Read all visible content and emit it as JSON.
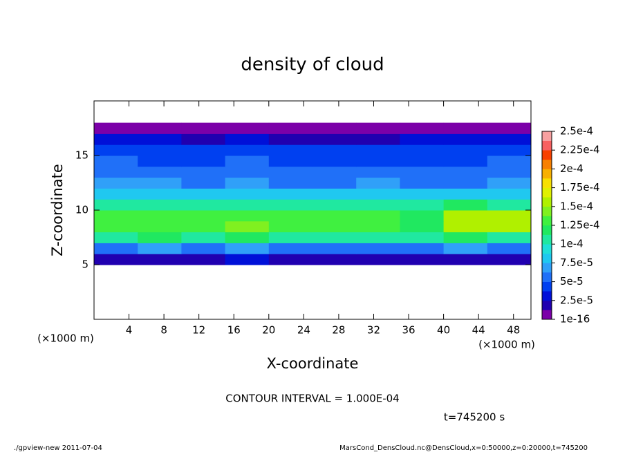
{
  "chart_data": {
    "type": "heatmap",
    "title": "density of cloud",
    "xlabel": "X-coordinate",
    "ylabel": "Z-coordinate",
    "x_unit": "(×1000 m)",
    "y_unit": "(×1000 m)",
    "annotation": "CONTOUR INTERVAL = 1.000E-04",
    "time_label": "t=745200 s",
    "footer_left": "./gpview-new  2011-07-04",
    "footer_right": "MarsCond_DensCloud.nc@DensCloud,x=0:50000,z=0:20000,t=745200",
    "xlim": [
      0,
      50
    ],
    "ylim": [
      0,
      20
    ],
    "xticks": [
      4,
      8,
      12,
      16,
      20,
      24,
      28,
      32,
      36,
      40,
      44,
      48
    ],
    "yticks": [
      5,
      10,
      15
    ],
    "x": [
      2.5,
      7.5,
      12.5,
      17.5,
      22.5,
      27.5,
      32.5,
      37.5,
      42.5,
      47.5
    ],
    "y": [
      0.5,
      1.5,
      2.5,
      3.5,
      4.5,
      5.5,
      6.5,
      7.5,
      8.5,
      9.5,
      10.5,
      11.5,
      12.5,
      13.5,
      14.5,
      15.5,
      16.5,
      17.5,
      18.5,
      19.5
    ],
    "values": [
      [
        null,
        null,
        null,
        null,
        null,
        null,
        null,
        null,
        null,
        null
      ],
      [
        null,
        null,
        null,
        null,
        null,
        null,
        null,
        null,
        null,
        null
      ],
      [
        null,
        null,
        null,
        null,
        null,
        null,
        null,
        null,
        null,
        null
      ],
      [
        null,
        null,
        null,
        null,
        null,
        null,
        null,
        null,
        null,
        null
      ],
      [
        null,
        null,
        null,
        null,
        null,
        null,
        null,
        null,
        null,
        null
      ],
      [
        2e-05,
        2e-05,
        2e-05,
        2.5e-05,
        2e-05,
        2e-05,
        2e-05,
        1.5e-05,
        2e-05,
        2e-05
      ],
      [
        6e-05,
        6.5e-05,
        6e-05,
        6.5e-05,
        6e-05,
        5.5e-05,
        6e-05,
        6e-05,
        6.5e-05,
        6e-05
      ],
      [
        0.00011,
        0.000115,
        0.00011,
        0.00012,
        0.00011,
        0.000105,
        0.00011,
        0.000105,
        0.000115,
        0.00011
      ],
      [
        0.00013,
        0.000135,
        0.000135,
        0.00014,
        0.00013,
        0.000125,
        0.000125,
        0.00012,
        0.00015,
        0.00015
      ],
      [
        0.00013,
        0.00013,
        0.000135,
        0.000135,
        0.00013,
        0.00013,
        0.000125,
        0.00012,
        0.000155,
        0.00016
      ],
      [
        0.00011,
        0.000105,
        0.00011,
        0.00011,
        0.000105,
        0.00011,
        0.00011,
        0.000105,
        0.000115,
        0.00011
      ],
      [
        8e-05,
        7.5e-05,
        8e-05,
        8e-05,
        7.5e-05,
        8e-05,
        8.5e-05,
        8e-05,
        8e-05,
        7.5e-05
      ],
      [
        6.5e-05,
        6.5e-05,
        6e-05,
        6.5e-05,
        6e-05,
        6e-05,
        6.5e-05,
        6e-05,
        6e-05,
        6.5e-05
      ],
      [
        5.5e-05,
        5.5e-05,
        5e-05,
        5.5e-05,
        5e-05,
        5e-05,
        5.5e-05,
        5e-05,
        5e-05,
        5.5e-05
      ],
      [
        5e-05,
        4.5e-05,
        4.5e-05,
        5e-05,
        4.5e-05,
        4.5e-05,
        4.5e-05,
        4.5e-05,
        4.5e-05,
        5e-05
      ],
      [
        4.5e-05,
        4e-05,
        4e-05,
        4e-05,
        4e-05,
        4e-05,
        4e-05,
        4e-05,
        4e-05,
        4.5e-05
      ],
      [
        2.5e-05,
        2.5e-05,
        2e-05,
        2.5e-05,
        2e-05,
        2e-05,
        2e-05,
        2.5e-05,
        2.5e-05,
        2.5e-05
      ],
      [
        5e-06,
        5e-06,
        5e-06,
        5e-06,
        5e-06,
        5e-06,
        5e-06,
        5e-06,
        5e-06,
        5e-06
      ],
      [
        null,
        null,
        null,
        null,
        null,
        null,
        null,
        null,
        null,
        null
      ],
      [
        null,
        null,
        null,
        null,
        null,
        null,
        null,
        null,
        null,
        null
      ]
    ],
    "clim": [
      0,
      0.00025
    ],
    "colors": [
      "#7b00a8",
      "#2000b0",
      "#0010d8",
      "#0040f0",
      "#2070f8",
      "#30a0f8",
      "#20c8f0",
      "#20e0d8",
      "#20e8a0",
      "#20e860",
      "#40f040",
      "#80f020",
      "#b0f000",
      "#e0f000",
      "#f8e000",
      "#f8b000",
      "#f88000",
      "#f84000",
      "#f86060",
      "#f8a0a0"
    ],
    "cticks": [
      {
        "value": 1e-16,
        "label": "1e-16"
      },
      {
        "value": 2.5e-05,
        "label": "2.5e-5"
      },
      {
        "value": 5e-05,
        "label": "5e-5"
      },
      {
        "value": 7.5e-05,
        "label": "7.5e-5"
      },
      {
        "value": 0.0001,
        "label": "1e-4"
      },
      {
        "value": 0.000125,
        "label": "1.25e-4"
      },
      {
        "value": 0.00015,
        "label": "1.5e-4"
      },
      {
        "value": 0.000175,
        "label": "1.75e-4"
      },
      {
        "value": 0.0002,
        "label": "2e-4"
      },
      {
        "value": 0.000225,
        "label": "2.25e-4"
      },
      {
        "value": 0.00025,
        "label": "2.5e-4"
      }
    ]
  }
}
